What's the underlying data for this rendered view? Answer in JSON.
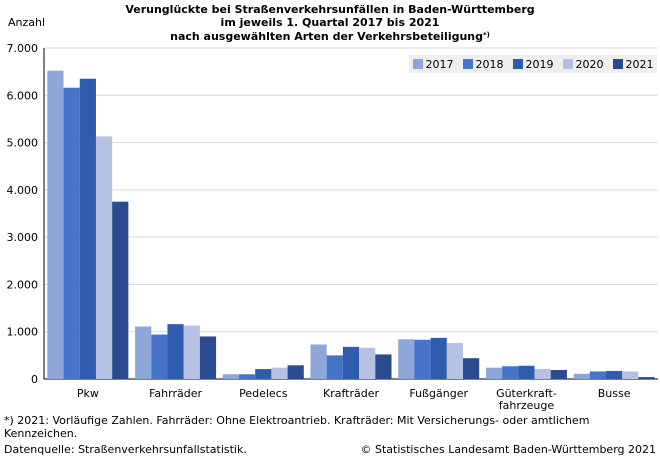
{
  "chart_data": {
    "type": "bar",
    "title_lines": [
      "Verunglückte bei Straßenverkehrsunfällen in Baden-Württemberg",
      "im jeweils 1. Quartal 2017 bis 2021",
      "nach ausgewählten Arten der Verkehrsbeteiligung"
    ],
    "title_sup": "*)",
    "ylabel": "Anzahl",
    "ylim": [
      0,
      7000
    ],
    "yticks": [
      0,
      1000,
      2000,
      3000,
      4000,
      5000,
      6000,
      7000
    ],
    "ytick_labels": [
      "0",
      "1.000",
      "2.000",
      "3.000",
      "4.000",
      "5.000",
      "6.000",
      "7.000"
    ],
    "categories": [
      [
        "Pkw"
      ],
      [
        "Fahrräder"
      ],
      [
        "Pedelecs"
      ],
      [
        "Krafträder"
      ],
      [
        "Fußgänger"
      ],
      [
        "Güterkraft-",
        "fahrzeuge"
      ],
      [
        "Busse"
      ]
    ],
    "series": [
      {
        "name": "2017",
        "color": "#8ea6d8",
        "values": [
          6520,
          1110,
          100,
          730,
          840,
          240,
          110
        ]
      },
      {
        "name": "2018",
        "color": "#4674c8",
        "values": [
          6160,
          940,
          100,
          500,
          830,
          270,
          160
        ]
      },
      {
        "name": "2019",
        "color": "#2f5cad",
        "values": [
          6350,
          1160,
          210,
          680,
          870,
          280,
          170
        ]
      },
      {
        "name": "2020",
        "color": "#b7c1e3",
        "values": [
          5130,
          1130,
          240,
          660,
          760,
          210,
          160
        ]
      },
      {
        "name": "2021",
        "color": "#2c4a8f",
        "values": [
          3750,
          900,
          290,
          520,
          440,
          190,
          40
        ]
      }
    ],
    "grid": true,
    "legend_position": "top-right"
  },
  "footnote": "*) 2021: Vorläufige Zahlen. Fahrräder: Ohne Elektroantrieb. Krafträder: Mit Versicherungs- oder amtlichem Kennzeichen.",
  "source": "Datenquelle: Straßenverkehrsunfallstatistik.",
  "copyright": "© Statistisches Landesamt Baden-Württemberg 2021"
}
